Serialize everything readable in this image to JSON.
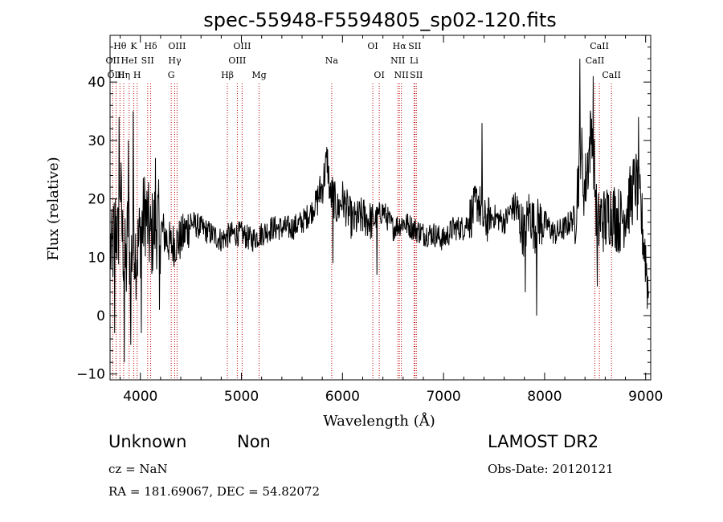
{
  "chart_data": {
    "type": "line",
    "title": "spec-55948-F5594805_sp02-120.fits",
    "xlabel": "Wavelength (Å)",
    "ylabel": "Flux (relative)",
    "xlim": [
      3700,
      9050
    ],
    "ylim": [
      -11,
      48
    ],
    "xticks": [
      4000,
      5000,
      6000,
      7000,
      8000,
      9000
    ],
    "yticks": [
      -10,
      0,
      10,
      20,
      30,
      40
    ],
    "grid": false,
    "line_color": "#000000",
    "marker_line_color": "#c00000",
    "spectral_lines": [
      {
        "label": "Hθ",
        "wavelength": 3798,
        "row": 0
      },
      {
        "label": "OII",
        "wavelength": 3727,
        "row": 1
      },
      {
        "label": "OIII",
        "wavelength": 3760,
        "row": 2
      },
      {
        "label": "K",
        "wavelength": 3934,
        "row": 0
      },
      {
        "label": "HeI",
        "wavelength": 3889,
        "row": 1
      },
      {
        "label": "Hη",
        "wavelength": 3835,
        "row": 2
      },
      {
        "label": "H",
        "wavelength": 3968,
        "row": 2
      },
      {
        "label": "Hδ",
        "wavelength": 4102,
        "row": 0
      },
      {
        "label": "SII",
        "wavelength": 4072,
        "row": 1
      },
      {
        "label": "OIII",
        "wavelength": 4363,
        "row": 0
      },
      {
        "label": "Hγ",
        "wavelength": 4340,
        "row": 1
      },
      {
        "label": "G",
        "wavelength": 4305,
        "row": 2
      },
      {
        "label": "OIII",
        "wavelength": 5007,
        "row": 0
      },
      {
        "label": "OIII",
        "wavelength": 4959,
        "row": 1
      },
      {
        "label": "Hβ",
        "wavelength": 4861,
        "row": 2
      },
      {
        "label": "Mg",
        "wavelength": 5175,
        "row": 2
      },
      {
        "label": "Na",
        "wavelength": 5893,
        "row": 1
      },
      {
        "label": "OI",
        "wavelength": 6300,
        "row": 0
      },
      {
        "label": "OI",
        "wavelength": 6364,
        "row": 2
      },
      {
        "label": "Hα",
        "wavelength": 6563,
        "row": 0
      },
      {
        "label": "SII",
        "wavelength": 6716,
        "row": 0
      },
      {
        "label": "NII",
        "wavelength": 6548,
        "row": 1
      },
      {
        "label": "Li",
        "wavelength": 6708,
        "row": 1
      },
      {
        "label": "NII",
        "wavelength": 6583,
        "row": 2
      },
      {
        "label": "SII",
        "wavelength": 6731,
        "row": 2
      },
      {
        "label": "CaII",
        "wavelength": 8542,
        "row": 0
      },
      {
        "label": "CaII",
        "wavelength": 8498,
        "row": 1
      },
      {
        "label": "CaII",
        "wavelength": 8662,
        "row": 2
      }
    ],
    "spectrum_anchors": {
      "x": [
        3700,
        3720,
        3740,
        3760,
        3780,
        3800,
        3820,
        3840,
        3860,
        3880,
        3900,
        3920,
        3940,
        3960,
        3980,
        4000,
        4050,
        4100,
        4150,
        4200,
        4300,
        4400,
        4500,
        4600,
        4700,
        4800,
        4900,
        5000,
        5100,
        5200,
        5300,
        5400,
        5500,
        5600,
        5700,
        5800,
        5850,
        5880,
        5900,
        5950,
        6000,
        6100,
        6200,
        6300,
        6400,
        6500,
        6600,
        6700,
        6800,
        6900,
        7000,
        7100,
        7200,
        7300,
        7340,
        7400,
        7500,
        7600,
        7700,
        7800,
        7850,
        7900,
        7940,
        8000,
        8100,
        8200,
        8300,
        8340,
        8360,
        8380,
        8400,
        8440,
        8470,
        8500,
        8520,
        8560,
        8600,
        8650,
        8700,
        8750,
        8800,
        8850,
        8900,
        8950,
        9000,
        9030
      ],
      "y": [
        12,
        10,
        14,
        16,
        12,
        24,
        14,
        10,
        8,
        18,
        8,
        12,
        14,
        10,
        12,
        14,
        18,
        13,
        16,
        15,
        12,
        13,
        16,
        15,
        14,
        13,
        14,
        14,
        13,
        14,
        15,
        15,
        15,
        16,
        18,
        22,
        27,
        20,
        21,
        18,
        20,
        16,
        17,
        16,
        18,
        15,
        16,
        15,
        14,
        14,
        13,
        15,
        15,
        18,
        20,
        16,
        17,
        16,
        19,
        14,
        18,
        15,
        16,
        16,
        14,
        15,
        17,
        25,
        30,
        23,
        22,
        28,
        33,
        22,
        15,
        17,
        16,
        18,
        17,
        16,
        18,
        20,
        23,
        18,
        10,
        3
      ]
    },
    "spectrum_spikes": {
      "x": [
        3745,
        3790,
        3840,
        3880,
        3905,
        3930,
        4010,
        4150,
        4190,
        5905,
        6340,
        7380,
        7810,
        7920,
        8350,
        8480,
        8520,
        8750,
        8930
      ],
      "y": [
        -3,
        34,
        -8,
        30,
        -5,
        35,
        -3,
        27,
        1,
        9,
        7,
        33,
        4,
        0,
        44,
        41,
        5,
        11,
        34
      ]
    }
  },
  "footer": {
    "class_label": "Unknown",
    "subclass_label": "Non",
    "survey_label": "LAMOST DR2",
    "cz_text": "cz = NaN",
    "obs_date_text": "Obs-Date: 20120121",
    "coords_text": "RA =  181.69067, DEC =   54.82072"
  }
}
